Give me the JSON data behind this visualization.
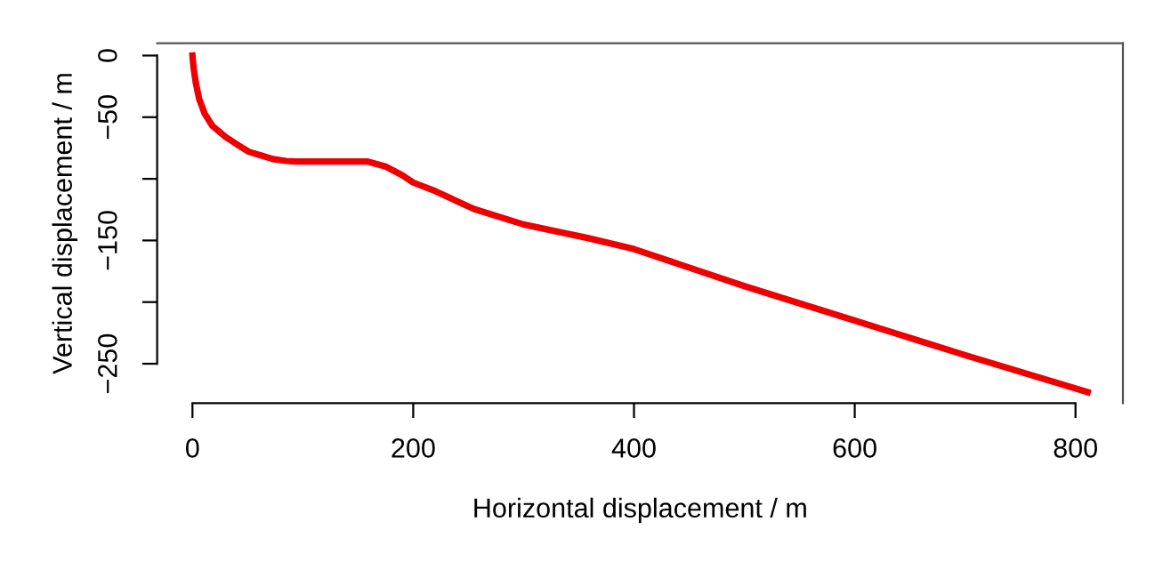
{
  "chart_data": {
    "type": "line",
    "xlabel": "Horizontal displacement / m",
    "ylabel": "Vertical displacement / m",
    "x": [
      0,
      1,
      3,
      6,
      11,
      18,
      30,
      42,
      51,
      62,
      73,
      85,
      94,
      110,
      130,
      159,
      175,
      190,
      200,
      220,
      255,
      300,
      358,
      400,
      500,
      600,
      700,
      811
    ],
    "series": [
      {
        "color": "#ee0000",
        "values": [
          0,
          -10,
          -22,
          -35,
          -47,
          -57,
          -66,
          -73,
          -78,
          -81,
          -84,
          -85.5,
          -86,
          -86,
          -86,
          -86,
          -90,
          -97,
          -103,
          -110,
          -124.5,
          -137,
          -148,
          -157,
          -187,
          -215,
          -243,
          -273
        ]
      }
    ],
    "xlim": [
      -32,
      843
    ],
    "ylim": [
      -282,
      10
    ],
    "xticks": [
      0,
      200,
      400,
      600,
      800
    ],
    "yticks": [
      0,
      -50,
      {
        "value": -100,
        "label": null
      },
      -150,
      {
        "value": -200,
        "label": null
      },
      -250
    ],
    "grid": false,
    "legend": false,
    "marker": "none",
    "line_style": "solid"
  }
}
